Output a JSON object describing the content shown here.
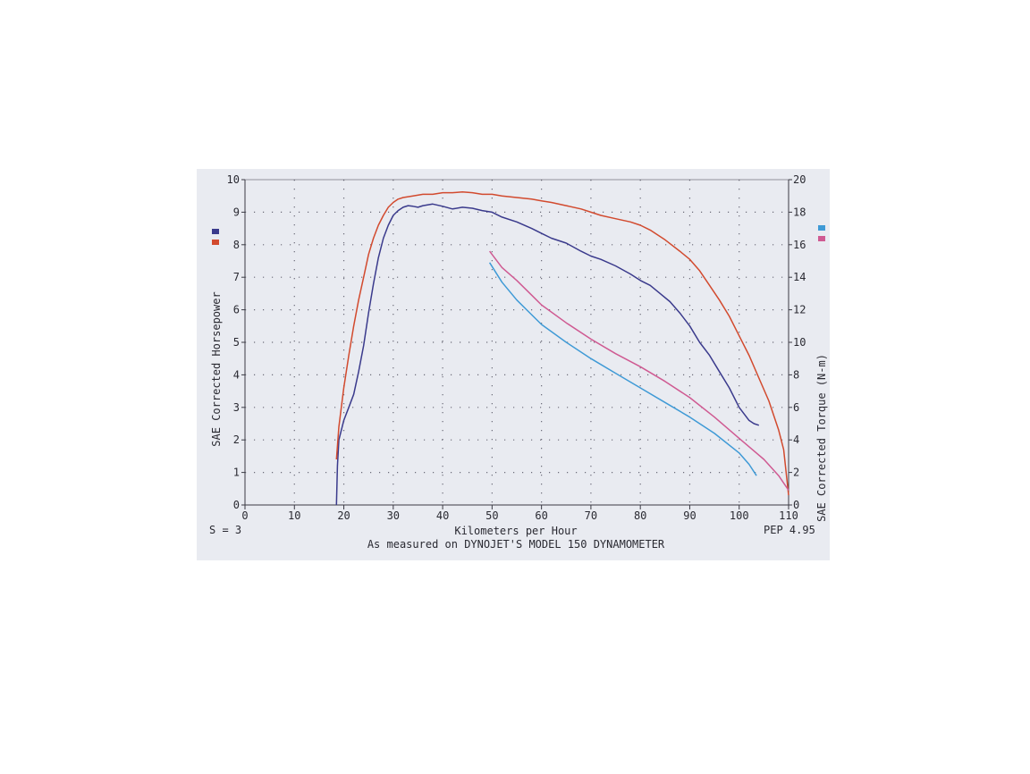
{
  "chart_data": {
    "type": "line",
    "xlabel": "Kilometers per Hour",
    "ylabel": "SAE Corrected Horsepower",
    "y2label": "SAE Corrected Torque (N-m)",
    "xlim": [
      0,
      110
    ],
    "ylim": [
      0,
      10
    ],
    "y2lim": [
      0,
      20
    ],
    "xticks": [
      "0",
      "10",
      "20",
      "30",
      "40",
      "50",
      "60",
      "70",
      "80",
      "90",
      "100",
      "110"
    ],
    "yticks": [
      "0",
      "1",
      "2",
      "3",
      "4",
      "5",
      "6",
      "7",
      "8",
      "9",
      "10"
    ],
    "y2ticks": [
      "0",
      "2",
      "4",
      "6",
      "8",
      "10",
      "12",
      "14",
      "16",
      "18",
      "20"
    ],
    "grid": true,
    "legend_left": "left side, stacked markers",
    "legend_right": "right side, stacked markers",
    "footer_left": "S = 3",
    "footer_right": "PEP 4.95",
    "footnote": "As measured on DYNOJET'S MODEL 150 DYNAMOMETER",
    "series": [
      {
        "axis": "left",
        "color": "#3a3a8c",
        "x": [
          18.5,
          18.7,
          19,
          20,
          21,
          22,
          23,
          24,
          25,
          26,
          27,
          28,
          29,
          30,
          31,
          32,
          33,
          34,
          35,
          36,
          38,
          40,
          42,
          44,
          46,
          48,
          50,
          52,
          55,
          58,
          60,
          62,
          65,
          68,
          70,
          72,
          75,
          78,
          80,
          82,
          84,
          86,
          88,
          90,
          92,
          94,
          96,
          98,
          100,
          102,
          103,
          104
        ],
        "y": [
          0,
          1.2,
          2.0,
          2.6,
          3.0,
          3.4,
          4.1,
          4.9,
          5.9,
          6.8,
          7.6,
          8.2,
          8.6,
          8.9,
          9.05,
          9.15,
          9.2,
          9.18,
          9.15,
          9.2,
          9.25,
          9.18,
          9.1,
          9.15,
          9.12,
          9.05,
          9.0,
          8.85,
          8.7,
          8.5,
          8.35,
          8.2,
          8.05,
          7.8,
          7.65,
          7.55,
          7.35,
          7.1,
          6.9,
          6.75,
          6.5,
          6.25,
          5.9,
          5.5,
          5.0,
          4.6,
          4.1,
          3.6,
          3.0,
          2.6,
          2.5,
          2.45
        ]
      },
      {
        "axis": "left",
        "color": "#d24a2e",
        "x": [
          18.5,
          19,
          20,
          21,
          22,
          23,
          24,
          25,
          26,
          27,
          28,
          29,
          30,
          31,
          32,
          34,
          36,
          38,
          40,
          42,
          44,
          46,
          48,
          50,
          52,
          55,
          58,
          60,
          62,
          65,
          68,
          70,
          72,
          75,
          78,
          80,
          82,
          85,
          88,
          90,
          92,
          94,
          96,
          98,
          100,
          102,
          104,
          106,
          108,
          109,
          110
        ],
        "y": [
          1.4,
          2.4,
          3.6,
          4.6,
          5.5,
          6.3,
          7.0,
          7.7,
          8.2,
          8.6,
          8.9,
          9.15,
          9.3,
          9.4,
          9.45,
          9.5,
          9.55,
          9.55,
          9.6,
          9.6,
          9.62,
          9.6,
          9.55,
          9.55,
          9.5,
          9.45,
          9.4,
          9.35,
          9.3,
          9.2,
          9.1,
          9.0,
          8.9,
          8.8,
          8.7,
          8.6,
          8.45,
          8.15,
          7.8,
          7.55,
          7.2,
          6.75,
          6.3,
          5.8,
          5.2,
          4.6,
          3.9,
          3.2,
          2.3,
          1.7,
          0.3
        ]
      },
      {
        "axis": "right",
        "color": "#3f9ad6",
        "x": [
          49.5,
          52,
          55,
          58,
          60,
          65,
          70,
          75,
          80,
          85,
          90,
          95,
          100,
          102,
          103.5
        ],
        "y": [
          14.9,
          13.7,
          12.6,
          11.7,
          11.1,
          10.0,
          9.0,
          8.1,
          7.2,
          6.3,
          5.4,
          4.4,
          3.2,
          2.5,
          1.8
        ]
      },
      {
        "axis": "right",
        "color": "#cf5a92",
        "x": [
          49.5,
          52,
          55,
          58,
          60,
          65,
          70,
          75,
          80,
          85,
          90,
          95,
          100,
          105,
          108,
          110
        ],
        "y": [
          15.6,
          14.6,
          13.8,
          12.9,
          12.3,
          11.2,
          10.2,
          9.3,
          8.5,
          7.6,
          6.6,
          5.4,
          4.1,
          2.8,
          1.8,
          0.9
        ]
      }
    ]
  }
}
